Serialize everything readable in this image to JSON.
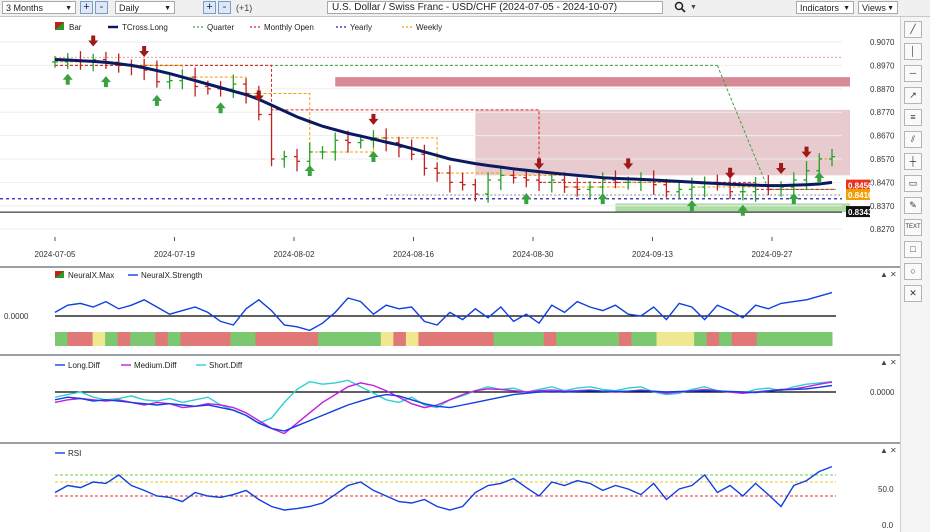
{
  "toolbar": {
    "period": "3 Months",
    "interval": "Daily",
    "offset": "(+1)",
    "title": "U.S. Dollar / Swiss Franc - USD/CHF (2024-07-05 - 2024-10-07)",
    "indicators": "Indicators",
    "views": "Views",
    "plus": "+",
    "minus": "-",
    "search_icon": "search-icon"
  },
  "sidebar": {
    "icons": [
      "line-tool-icon",
      "vertical-line-icon",
      "horizontal-line-icon",
      "ray-icon",
      "fib-icon",
      "crosshair-icon",
      "callout-icon",
      "pencil-icon",
      "text-icon",
      "rectangle-icon",
      "ellipse-icon",
      "delete-icon"
    ],
    "text_label": "TEXT"
  },
  "chart_data": [
    {
      "type": "bar",
      "title": "",
      "legend": [
        "Bar",
        "TCross.Long",
        "Quarter",
        "Monthly Open",
        "Yearly",
        "Weekly"
      ],
      "legend_position": "top-left",
      "x_ticks": [
        "2024-07-05",
        "2024-07-19",
        "2024-08-02",
        "2024-08-16",
        "2024-08-30",
        "2024-09-13",
        "2024-09-27"
      ],
      "y_ticks": [
        0.827,
        0.837,
        0.847,
        0.857,
        0.867,
        0.877,
        0.887,
        0.897,
        0.907
      ],
      "ylim": [
        0.8245,
        0.91
      ],
      "price_labels": [
        {
          "value": "0.8456",
          "color": "#e8341c"
        },
        {
          "value": "0.8416",
          "color": "#f0a000"
        },
        {
          "value": "0.8343",
          "color": "#111111"
        }
      ],
      "ohlc_close": [
        0.8985,
        0.899,
        0.8988,
        0.8995,
        0.898,
        0.897,
        0.8965,
        0.895,
        0.89,
        0.8905,
        0.892,
        0.888,
        0.887,
        0.8868,
        0.889,
        0.885,
        0.876,
        0.857,
        0.858,
        0.856,
        0.86,
        0.86,
        0.865,
        0.864,
        0.865,
        0.866,
        0.864,
        0.862,
        0.859,
        0.853,
        0.851,
        0.847,
        0.846,
        0.842,
        0.848,
        0.85,
        0.849,
        0.848,
        0.847,
        0.848,
        0.845,
        0.844,
        0.845,
        0.848,
        0.847,
        0.847,
        0.848,
        0.846,
        0.843,
        0.844,
        0.845,
        0.847,
        0.846,
        0.843,
        0.843,
        0.846,
        0.844,
        0.845,
        0.848,
        0.852,
        0.857,
        0.858
      ],
      "tcross_long": [
        0.8995,
        0.8993,
        0.899,
        0.8987,
        0.8983,
        0.8977,
        0.897,
        0.896,
        0.8948,
        0.8935,
        0.892,
        0.8905,
        0.889,
        0.8875,
        0.886,
        0.8845,
        0.8825,
        0.88,
        0.8775,
        0.875,
        0.873,
        0.871,
        0.8695,
        0.868,
        0.8668,
        0.8655,
        0.8642,
        0.863,
        0.8615,
        0.86,
        0.8585,
        0.857,
        0.856,
        0.855,
        0.8542,
        0.8535,
        0.8528,
        0.8522,
        0.8516,
        0.851,
        0.8505,
        0.85,
        0.8495,
        0.849,
        0.8487,
        0.8485,
        0.8483,
        0.848,
        0.8477,
        0.8474,
        0.8471,
        0.8468,
        0.8465,
        0.8462,
        0.846,
        0.8458,
        0.8456,
        0.8456,
        0.8458,
        0.846,
        0.8463,
        0.847
      ],
      "monthly_open_levels": [
        0.897,
        0.878,
        0.847,
        0.844
      ],
      "yearly_level": 0.84,
      "quarter_level": 0.897,
      "zones": [
        {
          "label": "resistance-zone",
          "from": 0.888,
          "to": 0.892,
          "color": "#c85a6a"
        },
        {
          "label": "resistance-zone-2",
          "from": 0.85,
          "to": 0.878,
          "color": "#d4a0a8"
        },
        {
          "label": "support-zone",
          "from": 0.8343,
          "to": 0.838,
          "color": "#6abf5a"
        }
      ]
    },
    {
      "type": "line",
      "legend": [
        "NeuralX.Max",
        "NeuralX.Strength"
      ],
      "y_ticks": [
        "0.0000"
      ],
      "strength": [
        0.2,
        0.6,
        0.7,
        0.5,
        0.8,
        0.4,
        0.6,
        0.9,
        0.5,
        0.1,
        0.3,
        0.5,
        0.2,
        -0.3,
        -0.5,
        0.4,
        0.9,
        0.3,
        -0.5,
        -0.6,
        -0.8,
        -0.4,
        0.2,
        1.0,
        0.8,
        0.1,
        0.6,
        0.4,
        0.5,
        -0.3,
        -0.5,
        0.2,
        -0.2,
        0.4,
        -0.1,
        0.5,
        -0.3,
        0.1,
        -0.4,
        0.6,
        0.2,
        0.8,
        0.5,
        0.3,
        0.6,
        0.1,
        0.0,
        0.5,
        -0.2,
        0.7,
        0.5,
        -0.2,
        0.6,
        0.3,
        -0.1,
        0.6,
        0.4,
        0.7,
        0.8,
        0.9,
        1.1,
        1.3
      ],
      "state_bar": [
        "g",
        "r",
        "r",
        "y",
        "g",
        "r",
        "g",
        "g",
        "r",
        "g",
        "r",
        "r",
        "r",
        "r",
        "g",
        "g",
        "r",
        "r",
        "r",
        "r",
        "r",
        "g",
        "g",
        "g",
        "g",
        "g",
        "y",
        "r",
        "y",
        "r",
        "r",
        "r",
        "r",
        "r",
        "r",
        "g",
        "g",
        "g",
        "g",
        "r",
        "g",
        "g",
        "g",
        "g",
        "g",
        "r",
        "g",
        "g",
        "y",
        "y",
        "y",
        "g",
        "r",
        "g",
        "r",
        "r",
        "g",
        "g",
        "g",
        "g",
        "g",
        "g"
      ]
    },
    {
      "type": "line",
      "legend": [
        "Long.Diff",
        "Medium.Diff",
        "Short.Diff"
      ],
      "y_ticks": [
        "0.0000"
      ],
      "long_diff": [
        -0.3,
        -0.2,
        -0.25,
        -0.35,
        -0.3,
        -0.35,
        -0.4,
        -0.45,
        -0.5,
        -0.45,
        -0.5,
        -0.55,
        -0.5,
        -0.6,
        -0.7,
        -0.9,
        -1.2,
        -1.4,
        -1.5,
        -1.3,
        -1.1,
        -0.9,
        -0.7,
        -0.5,
        -0.35,
        -0.2,
        -0.1,
        -0.15,
        -0.3,
        -0.45,
        -0.55,
        -0.6,
        -0.5,
        -0.4,
        -0.3,
        -0.2,
        -0.1,
        -0.05,
        0.0,
        0.02,
        0.0,
        0.02,
        0.05,
        0.03,
        0.02,
        0.03,
        0.05,
        0.03,
        0.0,
        0.02,
        0.03,
        0.05,
        0.03,
        0.02,
        0.0,
        -0.02,
        0.03,
        0.08,
        0.1,
        0.12,
        0.18,
        0.25
      ],
      "medium_diff": [
        -0.4,
        -0.3,
        -0.25,
        -0.3,
        -0.35,
        -0.3,
        -0.4,
        -0.5,
        -0.4,
        -0.45,
        -0.6,
        -0.55,
        -0.45,
        -0.5,
        -0.6,
        -0.8,
        -1.1,
        -1.4,
        -1.6,
        -1.2,
        -0.8,
        -0.4,
        -0.1,
        0.2,
        0.35,
        0.25,
        0.05,
        -0.2,
        -0.45,
        -0.6,
        -0.5,
        -0.3,
        -0.1,
        0.05,
        0.12,
        0.1,
        0.05,
        0.0,
        0.05,
        0.08,
        0.03,
        0.05,
        0.08,
        0.03,
        0.0,
        0.03,
        0.08,
        0.02,
        -0.05,
        0.0,
        0.05,
        0.1,
        0.05,
        0.0,
        -0.05,
        0.0,
        0.05,
        0.1,
        0.12,
        0.2,
        0.3,
        0.38
      ],
      "short_diff": [
        -0.2,
        -0.1,
        0.0,
        -0.2,
        -0.3,
        -0.25,
        -0.15,
        -0.3,
        -0.35,
        -0.25,
        -0.4,
        -0.3,
        -0.2,
        -0.5,
        -0.7,
        -0.9,
        -1.2,
        -1.0,
        -0.4,
        0.1,
        0.4,
        0.3,
        0.35,
        0.45,
        0.2,
        -0.05,
        -0.3,
        -0.4,
        -0.2,
        -0.5,
        -0.6,
        -0.3,
        -0.15,
        0.05,
        0.2,
        0.1,
        0.15,
        0.0,
        0.1,
        0.2,
        0.05,
        0.15,
        0.2,
        0.1,
        0.05,
        0.15,
        0.2,
        0.0,
        -0.1,
        -0.05,
        0.1,
        0.2,
        0.05,
        0.0,
        -0.05,
        0.1,
        0.15,
        0.05,
        0.2,
        0.3,
        0.35,
        0.4
      ]
    },
    {
      "type": "line",
      "legend": [
        "RSI"
      ],
      "y_ticks": [
        "50.0",
        "0.0"
      ],
      "ylim": [
        0,
        100
      ],
      "levels": [
        {
          "value": 70,
          "color": "#70d040"
        },
        {
          "value": 60,
          "color": "#e8c820"
        },
        {
          "value": 40,
          "color": "#e83030"
        }
      ],
      "rsi": [
        45,
        55,
        52,
        60,
        58,
        70,
        55,
        48,
        40,
        38,
        32,
        45,
        40,
        38,
        42,
        48,
        35,
        25,
        20,
        22,
        25,
        30,
        42,
        55,
        60,
        48,
        40,
        32,
        30,
        35,
        25,
        20,
        25,
        45,
        55,
        58,
        65,
        52,
        40,
        60,
        55,
        62,
        58,
        48,
        55,
        50,
        42,
        58,
        35,
        50,
        55,
        70,
        45,
        55,
        40,
        58,
        42,
        25,
        55,
        62,
        75,
        82
      ]
    }
  ]
}
